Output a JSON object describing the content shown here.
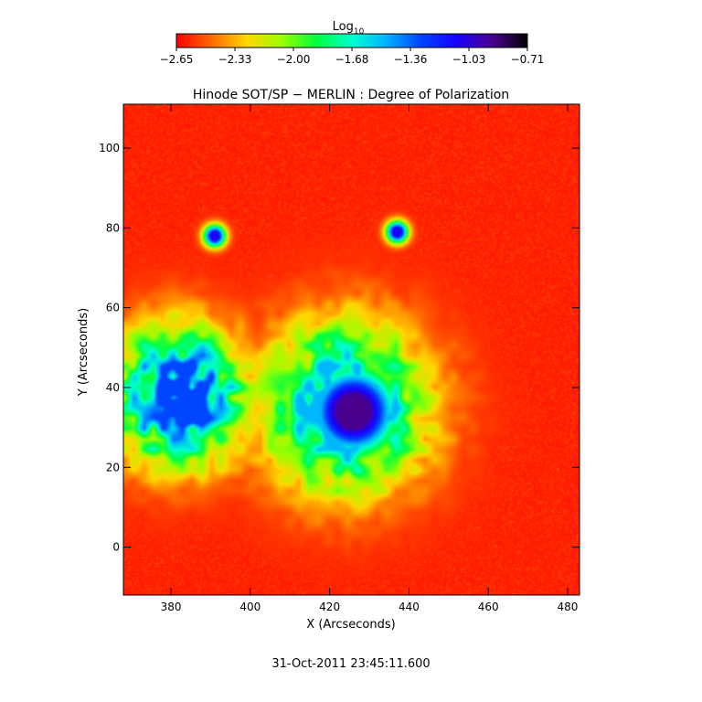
{
  "chart_data": {
    "type": "heatmap",
    "title": "Hinode SOT/SP − MERLIN : Degree of Polarization",
    "xlabel": "X (Arcseconds)",
    "ylabel": "Y (Arcseconds)",
    "timestamp": "31-Oct-2011 23:45:11.600",
    "xlim": [
      368,
      483
    ],
    "ylim": [
      -12,
      111
    ],
    "xticks": [
      380,
      400,
      420,
      440,
      460,
      480
    ],
    "yticks": [
      0,
      20,
      40,
      60,
      80,
      100
    ],
    "colorbar": {
      "title": "Log",
      "title_subscript": "10",
      "range": [
        -2.65,
        -0.71
      ],
      "ticks": [
        "−2.65",
        "−2.33",
        "−2.00",
        "−1.68",
        "−1.36",
        "−1.03",
        "−0.71"
      ],
      "colormap": [
        "#ff0000",
        "#ff6a00",
        "#ffd700",
        "#9aff00",
        "#00ff40",
        "#00ffd0",
        "#00b0ff",
        "#0040ff",
        "#1a00ff",
        "#4a0090",
        "#000000"
      ]
    },
    "features": [
      {
        "name": "sunspot umbra",
        "center": [
          426,
          34
        ],
        "radius": 12,
        "value": -0.9
      },
      {
        "name": "penumbra",
        "center": [
          424,
          35
        ],
        "radius": 22,
        "value": -1.5
      },
      {
        "name": "plage",
        "center": [
          382,
          38
        ],
        "radius": 18,
        "value": -1.3
      },
      {
        "name": "pore",
        "center": [
          437,
          79
        ],
        "radius": 3,
        "value": -1.1
      },
      {
        "name": "pore",
        "center": [
          391,
          78
        ],
        "radius": 3,
        "value": -1.1
      }
    ],
    "background_value": -2.6
  }
}
